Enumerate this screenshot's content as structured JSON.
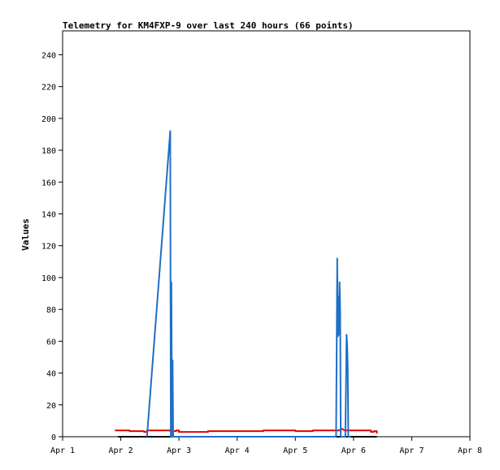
{
  "chart_data": {
    "type": "line",
    "title": "Telemetry for KM4FXP-9 over last 240 hours (66 points)",
    "xlabel": "",
    "ylabel": "Values",
    "x_ticks": [
      "Apr 1",
      "Apr 2",
      "Apr 3",
      "Apr 4",
      "Apr 5",
      "Apr 6",
      "Apr 7",
      "Apr 8"
    ],
    "xlim": [
      0,
      7
    ],
    "ylim": [
      0,
      255
    ],
    "y_ticks": [
      0,
      20,
      40,
      60,
      80,
      100,
      120,
      140,
      160,
      180,
      200,
      220,
      240
    ],
    "grid": false,
    "legend": "none",
    "series": [
      {
        "color": "#000000",
        "points": [
          [
            0.95,
            0
          ],
          [
            5.4,
            0
          ]
        ]
      },
      {
        "color": "#e00000",
        "points": [
          [
            0.9,
            4
          ],
          [
            1.15,
            4
          ],
          [
            1.15,
            3.5
          ],
          [
            1.4,
            3.5
          ],
          [
            1.4,
            3
          ],
          [
            1.45,
            3
          ],
          [
            1.45,
            4
          ],
          [
            1.85,
            4
          ],
          [
            1.85,
            3.5
          ],
          [
            1.95,
            3.5
          ],
          [
            1.95,
            4
          ],
          [
            2.0,
            4
          ],
          [
            2.0,
            3
          ],
          [
            2.5,
            3
          ],
          [
            2.5,
            3.5
          ],
          [
            3.45,
            3.5
          ],
          [
            3.45,
            4
          ],
          [
            4.0,
            4
          ],
          [
            4.0,
            3.5
          ],
          [
            4.3,
            3.5
          ],
          [
            4.3,
            4
          ],
          [
            4.75,
            4
          ],
          [
            4.8,
            5
          ],
          [
            4.85,
            4
          ],
          [
            5.3,
            4
          ],
          [
            5.3,
            3
          ],
          [
            5.35,
            3
          ],
          [
            5.35,
            3.5
          ],
          [
            5.4,
            3.5
          ],
          [
            5.4,
            2
          ]
        ]
      },
      {
        "color": "#1f6fc7",
        "points": [
          [
            1.45,
            0
          ],
          [
            1.85,
            192
          ],
          [
            1.86,
            0
          ],
          [
            1.87,
            97
          ],
          [
            1.88,
            0
          ],
          [
            1.89,
            48
          ],
          [
            1.9,
            0
          ],
          [
            1.95,
            0
          ],
          [
            4.7,
            0
          ],
          [
            4.71,
            55
          ],
          [
            4.72,
            112
          ],
          [
            4.73,
            63
          ],
          [
            4.74,
            88
          ],
          [
            4.75,
            64
          ],
          [
            4.76,
            97
          ],
          [
            4.77,
            80
          ],
          [
            4.78,
            0
          ],
          [
            4.8,
            0
          ],
          [
            4.86,
            0
          ],
          [
            4.87,
            33
          ],
          [
            4.88,
            64
          ],
          [
            4.89,
            58
          ],
          [
            4.9,
            45
          ],
          [
            4.91,
            0
          ],
          [
            4.95,
            0
          ]
        ]
      }
    ]
  }
}
